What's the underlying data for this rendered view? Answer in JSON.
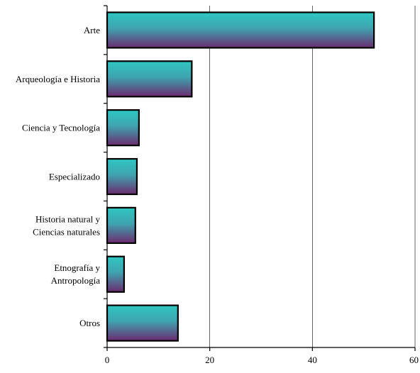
{
  "chart_data": {
    "type": "bar",
    "orientation": "horizontal",
    "categories": [
      [
        "Arte"
      ],
      [
        "Arqueología e Historia"
      ],
      [
        "Ciencia y Tecnología"
      ],
      [
        "Especializado"
      ],
      [
        "Historia natural y",
        "Ciencias naturales"
      ],
      [
        "Etnografía y",
        "Antropología"
      ],
      [
        "Otros"
      ]
    ],
    "values": [
      52,
      16.5,
      6.2,
      5.8,
      5.5,
      3.3,
      13.8
    ],
    "xlim": [
      0,
      60
    ],
    "xticks": [
      "0",
      "20",
      "40",
      "60"
    ],
    "tick_values": [
      0,
      20,
      40,
      60
    ],
    "grid": "vertical",
    "legend": "none",
    "colors": {
      "bar_top": "#2fc7c2",
      "bar_bottom": "#6b2a6e",
      "outline": "#000000"
    }
  }
}
